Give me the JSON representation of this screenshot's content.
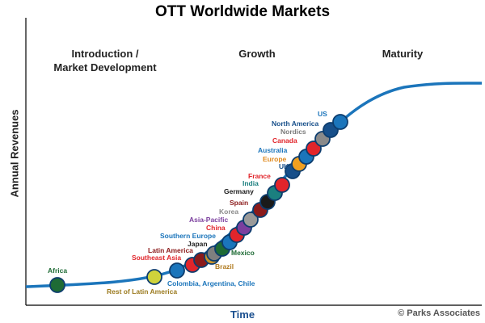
{
  "title": "OTT Worldwide Markets",
  "phases": {
    "intro_line1": "Introduction /",
    "intro_line2": "Market Development",
    "growth": "Growth",
    "maturity": "Maturity"
  },
  "axes": {
    "y_label": "Annual Revenues",
    "x_label": "Time"
  },
  "credit": "© Parks Associates",
  "colors": {
    "curve": "#1b75bb",
    "axis": "#000000"
  },
  "markets": [
    {
      "name": "Africa",
      "color": "#1e6b35",
      "label_color": "#1e6b35"
    },
    {
      "name": "Rest of Latin America",
      "color": "#cfd33b",
      "label_color": "#9b7a1e"
    },
    {
      "name": "Colombia, Argentina, Chile",
      "color": "#1b75bb",
      "label_color": "#1b75bb"
    },
    {
      "name": "Southeast Asia",
      "color": "#e1252b",
      "label_color": "#e1252b"
    },
    {
      "name": "Latin America",
      "color": "#8b1a1a",
      "label_color": "#8b1a1a"
    },
    {
      "name": "Brazil",
      "color": "#c9932a",
      "label_color": "#b07a1e"
    },
    {
      "name": "Japan",
      "color": "#7f7f7f",
      "label_color": "#222222"
    },
    {
      "name": "Mexico",
      "color": "#1e6b35",
      "label_color": "#1e6b35"
    },
    {
      "name": "Southern Europe",
      "color": "#1b75bb",
      "label_color": "#1b75bb"
    },
    {
      "name": "China",
      "color": "#e1252b",
      "label_color": "#e1252b"
    },
    {
      "name": "Asia-Pacific",
      "color": "#7b3f9e",
      "label_color": "#7b3f9e"
    },
    {
      "name": "Korea",
      "color": "#9a9a9a",
      "label_color": "#8a8a8a"
    },
    {
      "name": "Spain",
      "color": "#8b1a1a",
      "label_color": "#8b1a1a"
    },
    {
      "name": "Germany",
      "color": "#1a1a1a",
      "label_color": "#1a1a1a"
    },
    {
      "name": "India",
      "color": "#1b7f7f",
      "label_color": "#1b7f7f"
    },
    {
      "name": "France",
      "color": "#e1252b",
      "label_color": "#e1252b"
    },
    {
      "name": "UK",
      "color": "#174f8a",
      "label_color": "#174f8a"
    },
    {
      "name": "Europe",
      "color": "#f0a020",
      "label_color": "#e08a1e"
    },
    {
      "name": "Australia",
      "color": "#1b75bb",
      "label_color": "#1b75bb"
    },
    {
      "name": "Canada",
      "color": "#e1252b",
      "label_color": "#e1252b"
    },
    {
      "name": "Nordics",
      "color": "#8a8a8a",
      "label_color": "#7a7a7a"
    },
    {
      "name": "North America",
      "color": "#174f8a",
      "label_color": "#174f8a"
    },
    {
      "name": "US",
      "color": "#1b75bb",
      "label_color": "#1b75bb"
    }
  ]
}
